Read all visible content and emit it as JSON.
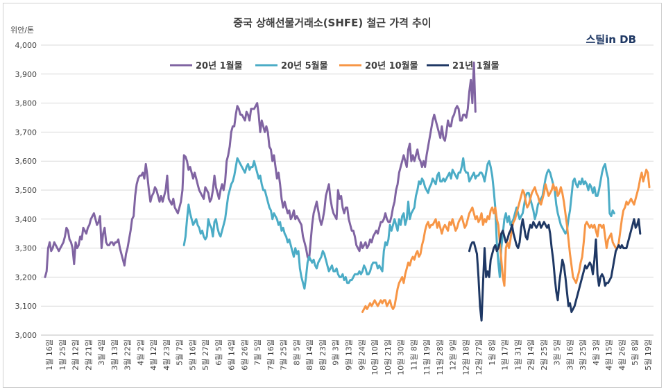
{
  "chart_data": {
    "type": "line",
    "title": "중국 상해선물거래소(SHFE) 철근 가격 추이",
    "ylabel": "위안/톤",
    "source": "스틸in DB",
    "ylim": [
      3000,
      4000
    ],
    "yticks": [
      "3,000",
      "3,100",
      "3,200",
      "3,300",
      "3,400",
      "3,500",
      "3,600",
      "3,700",
      "3,800",
      "3,900",
      "4,000"
    ],
    "grid": true,
    "legend_position": "top",
    "x_tick_labels": [
      "1월 16일",
      "1월 25일",
      "2월 12일",
      "2월 21일",
      "3월 4일",
      "3월 13일",
      "3월 22일",
      "4월 2일",
      "4월 12일",
      "4월 23일",
      "5월 7일",
      "5월 16일",
      "5월 27일",
      "6월 5일",
      "6월 14일",
      "6월 26일",
      "7월 5일",
      "7월 16일",
      "7월 25일",
      "8월 5일",
      "8월 14일",
      "8월 23일",
      "9월 3일",
      "9월 13일",
      "9월 24일",
      "10월 10일",
      "10월 21일",
      "10월 30일",
      "11월 8일",
      "11월 19일",
      "11월 28일",
      "12월 9일",
      "12월 18일",
      "12월 27일",
      "1월 8일",
      "1월 17일",
      "1월 31일",
      "2월 14일",
      "2월 25일",
      "3월 5일",
      "3월 16일",
      "3월 25일",
      "4월 3일",
      "4월 15일",
      "4월 26일",
      "5월 8일",
      "5월 19일"
    ],
    "series": [
      {
        "name": "20년 1월물",
        "color": "#8064a2",
        "start": 0,
        "values": [
          3200,
          3220,
          3300,
          3320,
          3290,
          3300,
          3320,
          3310,
          3300,
          3290,
          3300,
          3310,
          3320,
          3340,
          3370,
          3360,
          3330,
          3320,
          3300,
          3245,
          3320,
          3300,
          3310,
          3340,
          3330,
          3370,
          3360,
          3350,
          3370,
          3380,
          3400,
          3410,
          3420,
          3400,
          3380,
          3390,
          3410,
          3300,
          3350,
          3370,
          3320,
          3310,
          3310,
          3320,
          3320,
          3310,
          3320,
          3320,
          3330,
          3300,
          3280,
          3260,
          3240,
          3280,
          3300,
          3330,
          3360,
          3400,
          3410,
          3480,
          3520,
          3540,
          3550,
          3550,
          3560,
          3540,
          3590,
          3550,
          3500,
          3460,
          3480,
          3490,
          3510,
          3500,
          3480,
          3460,
          3480,
          3460,
          3480,
          3500,
          3550,
          3470,
          3460,
          3450,
          3470,
          3440,
          3430,
          3420,
          3440,
          3460,
          3500,
          3620,
          3615,
          3600,
          3570,
          3580,
          3560,
          3540,
          3560,
          3540,
          3520,
          3500,
          3490,
          3480,
          3470,
          3510,
          3500,
          3490,
          3460,
          3470,
          3500,
          3550,
          3510,
          3490,
          3470,
          3500,
          3520,
          3500,
          3530,
          3600,
          3620,
          3650,
          3700,
          3720,
          3720,
          3760,
          3790,
          3780,
          3760,
          3760,
          3750,
          3740,
          3770,
          3760,
          3740,
          3780,
          3780,
          3780,
          3790,
          3800,
          3760,
          3700,
          3740,
          3720,
          3700,
          3720,
          3700,
          3650,
          3640,
          3600,
          3620,
          3580,
          3540,
          3560,
          3520,
          3470,
          3440,
          3460,
          3440,
          3420,
          3430,
          3400,
          3410,
          3430,
          3400,
          3410,
          3400,
          3390,
          3380,
          3340,
          3320,
          3300,
          3270,
          3260,
          3320,
          3380,
          3420,
          3440,
          3460,
          3430,
          3400,
          3380,
          3400,
          3430,
          3480,
          3500,
          3520,
          3470,
          3440,
          3420,
          3410,
          3400,
          3500,
          3470,
          3480,
          3440,
          3420,
          3440,
          3440,
          3400,
          3380,
          3360,
          3360,
          3340,
          3310,
          3300,
          3290,
          3320,
          3300,
          3310,
          3320,
          3300,
          3310,
          3330,
          3320,
          3340,
          3350,
          3360,
          3350,
          3370,
          3390,
          3390,
          3400,
          3420,
          3400,
          3390,
          3390,
          3410,
          3440,
          3460,
          3500,
          3520,
          3560,
          3580,
          3600,
          3620,
          3600,
          3580,
          3640,
          3660,
          3600,
          3620,
          3600,
          3620,
          3640,
          3610,
          3600,
          3580,
          3600,
          3580,
          3620,
          3650,
          3680,
          3710,
          3740,
          3760,
          3740,
          3720,
          3700,
          3680,
          3720,
          3680,
          3670,
          3700,
          3740,
          3720,
          3720,
          3750,
          3760,
          3780,
          3790,
          3780,
          3740,
          3740,
          3760,
          3760,
          3750,
          3780,
          3840,
          3880,
          3800,
          3940,
          3770
        ]
      },
      {
        "name": "20년 5월물",
        "color": "#4bacc6",
        "start": 91,
        "values": [
          3310,
          3340,
          3400,
          3450,
          3420,
          3400,
          3380,
          3390,
          3400,
          3380,
          3370,
          3350,
          3360,
          3340,
          3330,
          3340,
          3400,
          3380,
          3370,
          3340,
          3390,
          3400,
          3370,
          3350,
          3340,
          3360,
          3380,
          3400,
          3440,
          3480,
          3500,
          3520,
          3530,
          3550,
          3580,
          3610,
          3600,
          3590,
          3580,
          3570,
          3560,
          3580,
          3590,
          3570,
          3580,
          3580,
          3600,
          3580,
          3560,
          3540,
          3550,
          3520,
          3500,
          3500,
          3480,
          3460,
          3440,
          3430,
          3400,
          3420,
          3410,
          3400,
          3380,
          3390,
          3360,
          3370,
          3350,
          3340,
          3320,
          3330,
          3310,
          3290,
          3270,
          3300,
          3280,
          3290,
          3230,
          3200,
          3180,
          3160,
          3200,
          3250,
          3270,
          3260,
          3250,
          3260,
          3240,
          3230,
          3250,
          3260,
          3270,
          3290,
          3280,
          3260,
          3240,
          3220,
          3230,
          3240,
          3220,
          3220,
          3230,
          3210,
          3200,
          3200,
          3210,
          3190,
          3200,
          3180,
          3180,
          3190,
          3190,
          3200,
          3210,
          3210,
          3210,
          3220,
          3210,
          3220,
          3240,
          3230,
          3210,
          3210,
          3220,
          3240,
          3250,
          3250,
          3250,
          3230,
          3240,
          3230,
          3220,
          3290,
          3320,
          3310,
          3330,
          3380,
          3360,
          3380,
          3400,
          3380,
          3360,
          3400,
          3380,
          3410,
          3420,
          3380,
          3400,
          3460,
          3400,
          3420,
          3430,
          3440,
          3480,
          3500,
          3530,
          3520,
          3540,
          3530,
          3510,
          3500,
          3490,
          3510,
          3520,
          3540,
          3530,
          3520,
          3550,
          3560,
          3530,
          3530,
          3540,
          3530,
          3540,
          3550,
          3560,
          3540,
          3570,
          3560,
          3550,
          3540,
          3560,
          3560,
          3580,
          3610,
          3570,
          3560,
          3560,
          3530,
          3540,
          3550,
          3560,
          3540,
          3550,
          3550,
          3560,
          3560,
          3550,
          3530,
          3560,
          3590,
          3600,
          3580,
          3550,
          3500,
          3440,
          3320,
          3250,
          3200,
          3300,
          3350,
          3400,
          3420,
          3390,
          3410,
          3380,
          3390,
          3400,
          3420,
          3440,
          3420,
          3400,
          3410,
          3420,
          3450,
          3480,
          3490,
          3490,
          3470,
          3450,
          3430,
          3400,
          3420,
          3450,
          3460,
          3470,
          3480,
          3510,
          3540,
          3560,
          3570,
          3560,
          3540,
          3520,
          3500,
          3450,
          3420,
          3400,
          3380,
          3370,
          3360,
          3350,
          3360,
          3400,
          3430,
          3480,
          3530,
          3540,
          3520,
          3510,
          3530,
          3520,
          3540,
          3520,
          3530,
          3520,
          3500,
          3520,
          3510,
          3490,
          3510,
          3480,
          3480,
          3500,
          3530,
          3560,
          3580,
          3590,
          3560,
          3540,
          3420,
          3410,
          3430,
          3420
        ]
      },
      {
        "name": "20년 10월물",
        "color": "#f79646",
        "start": 208,
        "values": [
          3080,
          3090,
          3100,
          3090,
          3100,
          3110,
          3100,
          3110,
          3120,
          3110,
          3100,
          3110,
          3120,
          3110,
          3120,
          3120,
          3100,
          3110,
          3120,
          3100,
          3090,
          3100,
          3130,
          3160,
          3180,
          3190,
          3200,
          3180,
          3210,
          3230,
          3250,
          3240,
          3260,
          3270,
          3260,
          3280,
          3290,
          3270,
          3280,
          3310,
          3330,
          3360,
          3380,
          3390,
          3370,
          3380,
          3380,
          3390,
          3400,
          3370,
          3390,
          3370,
          3350,
          3370,
          3380,
          3370,
          3360,
          3390,
          3380,
          3400,
          3380,
          3360,
          3370,
          3390,
          3400,
          3410,
          3390,
          3370,
          3380,
          3400,
          3420,
          3430,
          3440,
          3420,
          3400,
          3410,
          3390,
          3400,
          3420,
          3380,
          3400,
          3390,
          3410,
          3400,
          3430,
          3440,
          3420,
          3440,
          3400,
          3380,
          3320,
          3260,
          3200,
          3170,
          3300,
          3320,
          3300,
          3330,
          3370,
          3390,
          3400,
          3420,
          3440,
          3460,
          3480,
          3500,
          3490,
          3460,
          3440,
          3450,
          3470,
          3490,
          3500,
          3510,
          3490,
          3480,
          3460,
          3450,
          3470,
          3490,
          3520,
          3500,
          3480,
          3490,
          3500,
          3520,
          3500,
          3510,
          3480,
          3490,
          3510,
          3490,
          3460,
          3420,
          3380,
          3330,
          3280,
          3240,
          3200,
          3190,
          3180,
          3200,
          3220,
          3250,
          3270,
          3320,
          3380,
          3390,
          3380,
          3370,
          3380,
          3370,
          3380,
          3360,
          3340,
          3380,
          3380,
          3370,
          3380,
          3340,
          3300,
          3330,
          3340,
          3350,
          3320,
          3310,
          3300,
          3300,
          3320,
          3360,
          3400,
          3430,
          3440,
          3460,
          3450,
          3460,
          3470,
          3460,
          3450,
          3470,
          3490,
          3510,
          3540,
          3560,
          3530,
          3550,
          3570,
          3560,
          3510
        ]
      },
      {
        "name": "21년 1월물",
        "color": "#1f3864",
        "start": 278,
        "values": [
          3290,
          3310,
          3320,
          3320,
          3300,
          3280,
          3200,
          3100,
          3050,
          3180,
          3300,
          3200,
          3220,
          3200,
          3260,
          3280,
          3300,
          3310,
          3290,
          3300,
          3320,
          3350,
          3360,
          3340,
          3320,
          3330,
          3350,
          3360,
          3380,
          3350,
          3330,
          3310,
          3300,
          3320,
          3370,
          3400,
          3370,
          3340,
          3330,
          3360,
          3380,
          3370,
          3390,
          3380,
          3370,
          3380,
          3390,
          3370,
          3380,
          3390,
          3380,
          3370,
          3380,
          3350,
          3300,
          3260,
          3200,
          3150,
          3120,
          3180,
          3220,
          3260,
          3240,
          3200,
          3150,
          3100,
          3110,
          3080,
          3090,
          3100,
          3120,
          3140,
          3160,
          3180,
          3200,
          3220,
          3240,
          3230,
          3240,
          3250,
          3240,
          3210,
          3260,
          3330,
          3210,
          3170,
          3200,
          3210,
          3200,
          3170,
          3180,
          3180,
          3190,
          3200,
          3230,
          3260,
          3290,
          3300,
          3310,
          3300,
          3310,
          3300,
          3300,
          3300,
          3320,
          3340,
          3360,
          3380,
          3400,
          3370,
          3380,
          3400,
          3350
        ]
      }
    ]
  }
}
